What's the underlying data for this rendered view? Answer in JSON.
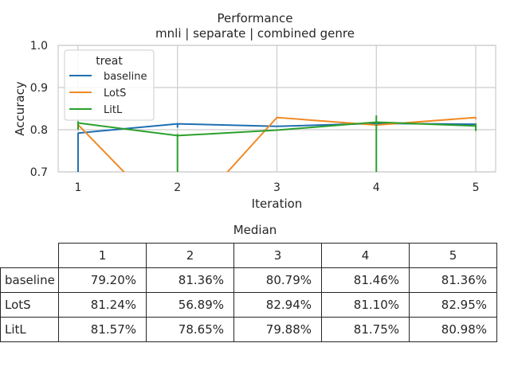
{
  "chart_data": [
    {
      "type": "line",
      "title": "Performance",
      "subtitle": "mnli | separate | combined genre",
      "xlabel": "Iteration",
      "ylabel": "Accuracy",
      "x": [
        1,
        2,
        3,
        4,
        5
      ],
      "xticks": [
        "1",
        "2",
        "3",
        "4",
        "5"
      ],
      "yticks": [
        "0.7",
        "0.8",
        "0.9",
        "1.0"
      ],
      "xlim": [
        0.8,
        5.2
      ],
      "ylim": [
        0.7,
        1.0
      ],
      "grid": true,
      "legend": {
        "title": "treat",
        "placement": "top-left"
      },
      "series": [
        {
          "name": "baseline",
          "color": "#1f6fb2",
          "values": [
            0.792,
            0.814,
            0.808,
            0.815,
            0.813
          ],
          "err_low": [
            0.7,
            0.805,
            0.808,
            0.81,
            0.805
          ]
        },
        {
          "name": "LotS",
          "color": "#f08a24",
          "values": [
            0.812,
            0.569,
            0.829,
            0.811,
            0.829
          ],
          "err_low": [
            0.8,
            0.5,
            0.829,
            0.81,
            0.825
          ]
        },
        {
          "name": "LitL",
          "color": "#2aa02b",
          "values": [
            0.816,
            0.786,
            0.799,
            0.818,
            0.809
          ],
          "err_low": [
            0.8,
            0.7,
            0.799,
            0.7,
            0.797
          ],
          "err_high": [
            0.82,
            0.79,
            0.8,
            0.834,
            0.815
          ]
        }
      ]
    },
    {
      "type": "table",
      "title": "Median",
      "columns": [
        "1",
        "2",
        "3",
        "4",
        "5"
      ],
      "rows": [
        {
          "label": "baseline",
          "values": [
            "79.20%",
            "81.36%",
            "80.79%",
            "81.46%",
            "81.36%"
          ]
        },
        {
          "label": "LotS",
          "values": [
            "81.24%",
            "56.89%",
            "82.94%",
            "81.10%",
            "82.95%"
          ]
        },
        {
          "label": "LitL",
          "values": [
            "81.57%",
            "78.65%",
            "79.88%",
            "81.75%",
            "80.98%"
          ]
        }
      ]
    }
  ]
}
